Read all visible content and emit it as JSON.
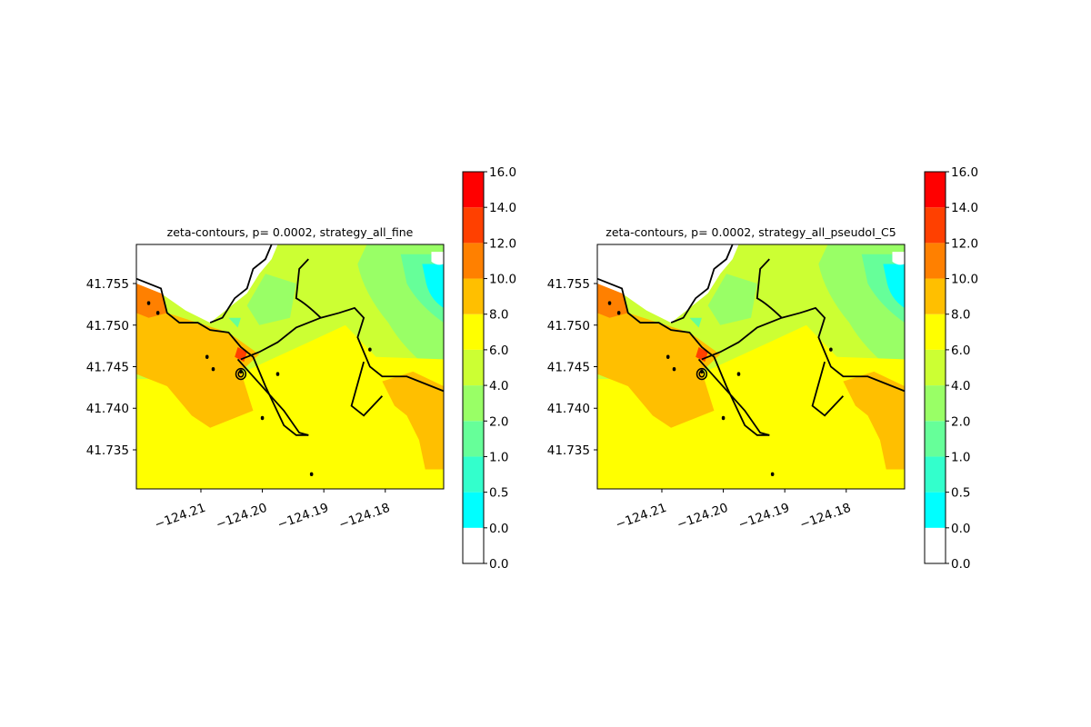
{
  "chart_data": [
    {
      "type": "heatmap",
      "title": "zeta-contours, p= 0.0002, strategy_all_fine",
      "xlabel": "",
      "ylabel": "",
      "xlim": [
        -124.2205,
        -124.1705
      ],
      "ylim": [
        41.7303,
        41.7597
      ],
      "x_ticks": [
        -124.21,
        -124.2,
        -124.19,
        -124.18
      ],
      "x_tick_labels": [
        "−124.21",
        "−124.20",
        "−124.19",
        "−124.18"
      ],
      "y_ticks": [
        41.735,
        41.74,
        41.745,
        41.75,
        41.755
      ],
      "y_tick_labels": [
        "41.735",
        "41.740",
        "41.745",
        "41.750",
        "41.755"
      ],
      "colorbar": {
        "levels": [
          0.0,
          0.5,
          1.0,
          2.0,
          4.0,
          6.0,
          8.0,
          10.0,
          12.0,
          14.0,
          16.0
        ],
        "tick_labels": [
          "0.0",
          "0.0",
          "0.5",
          "1.0",
          "2.0",
          "4.0",
          "6.0",
          "8.0",
          "10.0",
          "12.0",
          "14.0",
          "16.0"
        ],
        "colors": [
          "#ffffff",
          "#00ffff",
          "#33ffcc",
          "#66ff99",
          "#99ff66",
          "#ccff33",
          "#ffff00",
          "#ffbf00",
          "#ff8000",
          "#ff4000",
          "#ff0000"
        ]
      }
    },
    {
      "type": "heatmap",
      "title": "zeta-contours, p= 0.0002, strategy_all_pseudoI_C5",
      "xlabel": "",
      "ylabel": "",
      "xlim": [
        -124.2205,
        -124.1705
      ],
      "ylim": [
        41.7303,
        41.7597
      ],
      "x_ticks": [
        -124.21,
        -124.2,
        -124.19,
        -124.18
      ],
      "x_tick_labels": [
        "−124.21",
        "−124.20",
        "−124.19",
        "−124.18"
      ],
      "y_ticks": [
        41.735,
        41.74,
        41.745,
        41.75,
        41.755
      ],
      "y_tick_labels": [
        "41.735",
        "41.740",
        "41.745",
        "41.750",
        "41.755"
      ],
      "colorbar": {
        "levels": [
          0.0,
          0.5,
          1.0,
          2.0,
          4.0,
          6.0,
          8.0,
          10.0,
          12.0,
          14.0,
          16.0
        ],
        "tick_labels": [
          "0.0",
          "0.0",
          "0.5",
          "1.0",
          "2.0",
          "4.0",
          "6.0",
          "8.0",
          "10.0",
          "12.0",
          "14.0",
          "16.0"
        ],
        "colors": [
          "#ffffff",
          "#00ffff",
          "#33ffcc",
          "#66ff99",
          "#99ff66",
          "#ccff33",
          "#ffff00",
          "#ffbf00",
          "#ff8000",
          "#ff4000",
          "#ff0000"
        ]
      }
    }
  ]
}
